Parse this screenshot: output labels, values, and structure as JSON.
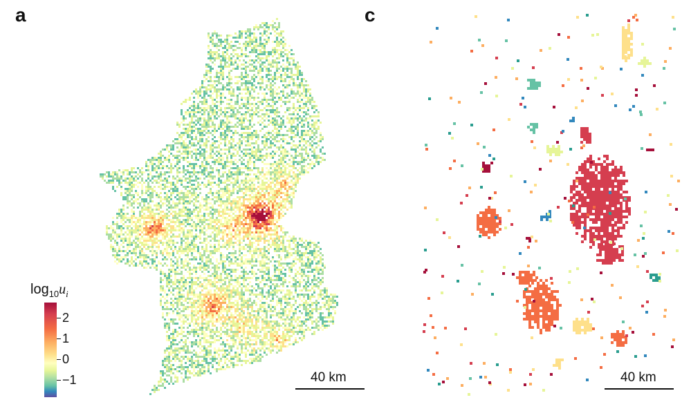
{
  "panels": {
    "a": {
      "label": "a"
    },
    "c": {
      "label": "c"
    }
  },
  "legend": {
    "title_base": "log",
    "title_sub": "10",
    "title_var": "u",
    "title_var_sub": "i",
    "ticks": [
      "2",
      "1",
      "0",
      "−1"
    ],
    "colors": [
      "#a50f3a",
      "#d53e4f",
      "#f46d43",
      "#fdae61",
      "#fee08b",
      "#ffffbf",
      "#e6f598",
      "#abdda4",
      "#66c2a5",
      "#3288bd",
      "#5e4fa2"
    ]
  },
  "scale_bars": {
    "a": {
      "label": "40 km"
    },
    "c": {
      "label": "40 km"
    }
  },
  "cluster_colors": [
    "#d53e4f",
    "#f46d43",
    "#fdae61",
    "#fee08b",
    "#e6f598",
    "#66c2a5",
    "#3288bd",
    "#a50f3a",
    "#2a9d8f"
  ]
}
